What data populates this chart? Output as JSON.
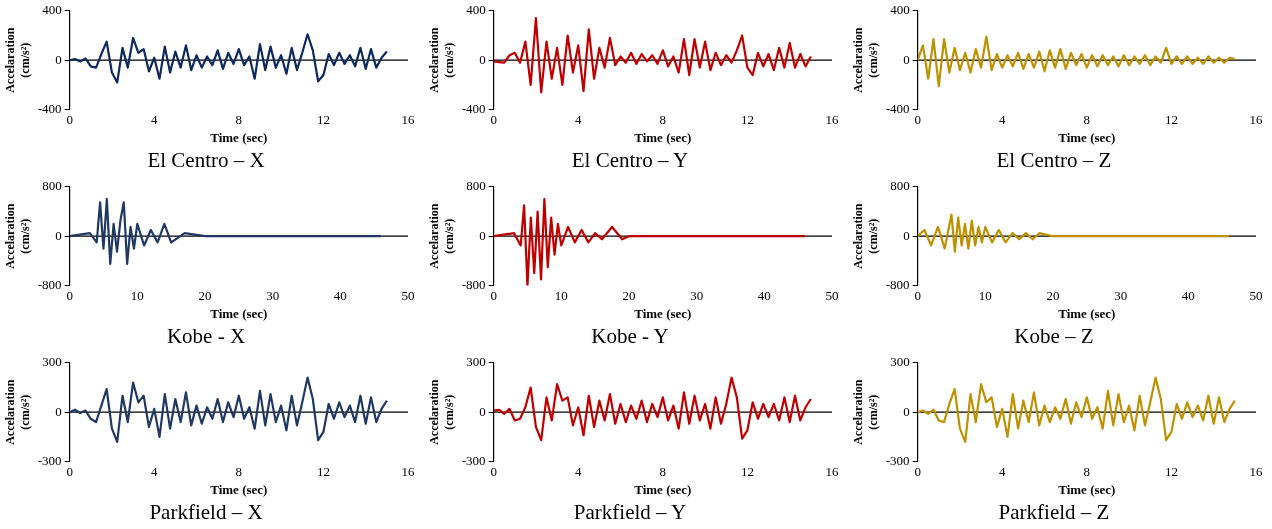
{
  "chart_data": [
    {
      "type": "line",
      "ref_lines": [
        {
          "axis": "y",
          "value": 0
        }
      ],
      "title": "El Centro – X",
      "xlabel": "Time (sec)",
      "ylabel": "Accelaration (cm/s²)",
      "xlim": [
        0,
        16
      ],
      "xticks": [
        0,
        4,
        8,
        12,
        16
      ],
      "ylim": [
        -400,
        400
      ],
      "yticks": [
        -400,
        0,
        400
      ],
      "grid": false,
      "legend": false,
      "marker": "none",
      "line_style": "solid",
      "series": [
        {
          "color": "#0d2a5e",
          "x": [
            0,
            0.25,
            0.5,
            0.75,
            1,
            1.25,
            1.5,
            1.75,
            2,
            2.25,
            2.5,
            2.75,
            3,
            3.25,
            3.5,
            3.75,
            4,
            4.25,
            4.5,
            4.75,
            5,
            5.25,
            5.5,
            5.75,
            6,
            6.25,
            6.5,
            6.75,
            7,
            7.25,
            7.5,
            7.75,
            8,
            8.25,
            8.5,
            8.75,
            9,
            9.25,
            9.5,
            9.75,
            10,
            10.25,
            10.5,
            10.75,
            11,
            11.25,
            11.5,
            11.75,
            12,
            12.25,
            12.5,
            12.75,
            13,
            13.25,
            13.5,
            13.75,
            14,
            14.25,
            14.5,
            14.75,
            15
          ],
          "values": [
            0,
            10,
            -10,
            15,
            -50,
            -60,
            50,
            150,
            -100,
            -180,
            100,
            -60,
            180,
            60,
            90,
            -90,
            20,
            -150,
            110,
            -100,
            70,
            -60,
            120,
            -80,
            40,
            -60,
            30,
            -40,
            80,
            -70,
            60,
            -30,
            90,
            -40,
            30,
            -150,
            130,
            -80,
            110,
            -60,
            40,
            -110,
            100,
            -80,
            60,
            210,
            80,
            -170,
            -120,
            50,
            -40,
            60,
            -30,
            40,
            -50,
            100,
            -70,
            90,
            -60,
            20,
            70
          ]
        }
      ]
    },
    {
      "type": "line",
      "ref_lines": [
        {
          "axis": "y",
          "value": 0
        }
      ],
      "title": "El Centro – Y",
      "xlabel": "Time (sec)",
      "ylabel": "Accelaration (cm/s²)",
      "xlim": [
        0,
        16
      ],
      "xticks": [
        0,
        4,
        8,
        12,
        16
      ],
      "ylim": [
        -400,
        400
      ],
      "yticks": [
        -400,
        0,
        400
      ],
      "grid": false,
      "legend": false,
      "marker": "none",
      "line_style": "solid",
      "series": [
        {
          "color": "#c00000",
          "x": [
            0,
            0.25,
            0.5,
            0.75,
            1,
            1.25,
            1.5,
            1.75,
            2,
            2.25,
            2.5,
            2.75,
            3,
            3.25,
            3.5,
            3.75,
            4,
            4.25,
            4.5,
            4.75,
            5,
            5.25,
            5.5,
            5.75,
            6,
            6.25,
            6.5,
            6.75,
            7,
            7.25,
            7.5,
            7.75,
            8,
            8.25,
            8.5,
            8.75,
            9,
            9.25,
            9.5,
            9.75,
            10,
            10.25,
            10.5,
            10.75,
            11,
            11.25,
            11.5,
            11.75,
            12,
            12.25,
            12.5,
            12.75,
            13,
            13.25,
            13.5,
            13.75,
            14,
            14.25,
            14.5,
            14.75,
            15
          ],
          "values": [
            -10,
            -15,
            -20,
            40,
            60,
            -20,
            150,
            -200,
            340,
            -260,
            150,
            -150,
            100,
            -200,
            200,
            -100,
            120,
            -250,
            250,
            -150,
            100,
            -60,
            180,
            -40,
            30,
            -20,
            60,
            -30,
            50,
            -10,
            40,
            -30,
            80,
            -50,
            30,
            -100,
            170,
            -120,
            170,
            -60,
            150,
            -80,
            60,
            -40,
            40,
            -20,
            80,
            200,
            -60,
            -120,
            60,
            -50,
            50,
            -80,
            100,
            -60,
            140,
            -60,
            50,
            -50,
            30
          ]
        }
      ]
    },
    {
      "type": "line",
      "ref_lines": [
        {
          "axis": "y",
          "value": 0
        }
      ],
      "title": "El Centro – Z",
      "xlabel": "Time (sec)",
      "ylabel": "Accelaration (cm/s²)",
      "xlim": [
        0,
        16
      ],
      "xticks": [
        0,
        4,
        8,
        12,
        16
      ],
      "ylim": [
        -400,
        400
      ],
      "yticks": [
        -400,
        0,
        400
      ],
      "grid": false,
      "legend": false,
      "marker": "none",
      "line_style": "solid",
      "series": [
        {
          "color": "#bf9000",
          "x": [
            0,
            0.25,
            0.5,
            0.75,
            1,
            1.25,
            1.5,
            1.75,
            2,
            2.25,
            2.5,
            2.75,
            3,
            3.25,
            3.5,
            3.75,
            4,
            4.25,
            4.5,
            4.75,
            5,
            5.25,
            5.5,
            5.75,
            6,
            6.25,
            6.5,
            6.75,
            7,
            7.25,
            7.5,
            7.75,
            8,
            8.25,
            8.5,
            8.75,
            9,
            9.25,
            9.5,
            9.75,
            10,
            10.25,
            10.5,
            10.75,
            11,
            11.25,
            11.5,
            11.75,
            12,
            12.25,
            12.5,
            12.75,
            13,
            13.25,
            13.5,
            13.75,
            14,
            14.25,
            14.5,
            14.75,
            15
          ],
          "values": [
            0,
            120,
            -150,
            170,
            -210,
            170,
            -100,
            100,
            -80,
            60,
            -100,
            90,
            -60,
            190,
            -80,
            50,
            -60,
            40,
            -50,
            60,
            -70,
            50,
            -60,
            70,
            -90,
            80,
            -60,
            90,
            -70,
            60,
            -40,
            50,
            -60,
            40,
            -50,
            40,
            -40,
            30,
            -50,
            40,
            -40,
            30,
            -30,
            40,
            -40,
            30,
            -20,
            100,
            -30,
            30,
            -30,
            30,
            -30,
            20,
            -30,
            30,
            -20,
            20,
            -20,
            20,
            10
          ]
        }
      ]
    },
    {
      "type": "line",
      "ref_lines": [
        {
          "axis": "y",
          "value": 0
        }
      ],
      "title": "Kobe - X",
      "xlabel": "Time (sec)",
      "ylabel": "Accelaration (cm/s²)",
      "xlim": [
        0,
        50
      ],
      "xticks": [
        0,
        10,
        20,
        30,
        40,
        50
      ],
      "ylim": [
        -800,
        800
      ],
      "yticks": [
        -800,
        0,
        800
      ],
      "grid": false,
      "legend": false,
      "marker": "none",
      "line_style": "solid",
      "series": [
        {
          "color": "#203864",
          "x": [
            0,
            3,
            4,
            4.5,
            5,
            5.5,
            6,
            6.5,
            7,
            7.5,
            8,
            8.5,
            9,
            9.5,
            10,
            11,
            12,
            13,
            14,
            15,
            17,
            20,
            30,
            46
          ],
          "values": [
            0,
            50,
            -100,
            550,
            -200,
            600,
            -450,
            200,
            -250,
            250,
            550,
            -450,
            150,
            -200,
            200,
            -150,
            100,
            -100,
            200,
            -100,
            50,
            0,
            0,
            0
          ]
        }
      ]
    },
    {
      "type": "line",
      "ref_lines": [
        {
          "axis": "y",
          "value": 0
        }
      ],
      "title": "Kobe - Y",
      "xlabel": "Time (sec)",
      "ylabel": "Accelaration (cm/s²)",
      "xlim": [
        0,
        50
      ],
      "xticks": [
        0,
        10,
        20,
        30,
        40,
        50
      ],
      "ylim": [
        -800,
        800
      ],
      "yticks": [
        -800,
        0,
        800
      ],
      "grid": false,
      "legend": false,
      "marker": "none",
      "line_style": "solid",
      "series": [
        {
          "color": "#c00000",
          "x": [
            0,
            3,
            4,
            4.5,
            5,
            5.5,
            6,
            6.5,
            7,
            7.5,
            8,
            8.5,
            9,
            9.5,
            10,
            11,
            12,
            13,
            14,
            15,
            16,
            17.5,
            19,
            20,
            30,
            46
          ],
          "values": [
            0,
            50,
            -150,
            500,
            -800,
            300,
            -600,
            400,
            -700,
            600,
            -500,
            300,
            -300,
            200,
            -150,
            150,
            -100,
            100,
            -100,
            50,
            -50,
            150,
            -50,
            0,
            0,
            0
          ]
        }
      ]
    },
    {
      "type": "line",
      "ref_lines": [
        {
          "axis": "y",
          "value": 0
        }
      ],
      "title": "Kobe – Z",
      "xlabel": "Time (sec)",
      "ylabel": "Accelaration (cm/s²)",
      "xlim": [
        0,
        50
      ],
      "xticks": [
        0,
        10,
        20,
        30,
        40,
        50
      ],
      "ylim": [
        -800,
        800
      ],
      "yticks": [
        -800,
        0,
        800
      ],
      "grid": false,
      "legend": false,
      "marker": "none",
      "line_style": "solid",
      "series": [
        {
          "color": "#bf9000",
          "x": [
            0,
            1,
            2,
            3,
            4,
            5,
            5.5,
            6,
            6.5,
            7,
            7.5,
            8,
            8.5,
            9,
            9.5,
            10,
            11,
            12,
            13,
            14,
            15,
            16,
            17,
            18,
            20,
            30,
            46
          ],
          "values": [
            0,
            100,
            -150,
            150,
            -200,
            350,
            -250,
            300,
            -150,
            200,
            -200,
            250,
            -150,
            150,
            -100,
            150,
            -100,
            100,
            -100,
            50,
            -50,
            50,
            -50,
            50,
            0,
            0,
            0
          ]
        }
      ]
    },
    {
      "type": "line",
      "ref_lines": [
        {
          "axis": "y",
          "value": 0
        }
      ],
      "title": "Parkfield – X",
      "xlabel": "Time (sec)",
      "ylabel": "Accelaration (cm/s²)",
      "xlim": [
        0,
        16
      ],
      "xticks": [
        0,
        4,
        8,
        12,
        16
      ],
      "ylim": [
        -300,
        300
      ],
      "yticks": [
        -300,
        0,
        300
      ],
      "grid": false,
      "legend": false,
      "marker": "none",
      "line_style": "solid",
      "series": [
        {
          "color": "#203864",
          "x": [
            0,
            0.25,
            0.5,
            0.75,
            1,
            1.25,
            1.5,
            1.75,
            2,
            2.25,
            2.5,
            2.75,
            3,
            3.25,
            3.5,
            3.75,
            4,
            4.25,
            4.5,
            4.75,
            5,
            5.25,
            5.5,
            5.75,
            6,
            6.25,
            6.5,
            6.75,
            7,
            7.25,
            7.5,
            7.75,
            8,
            8.25,
            8.5,
            8.75,
            9,
            9.25,
            9.5,
            9.75,
            10,
            10.25,
            10.5,
            10.75,
            11,
            11.25,
            11.5,
            11.75,
            12,
            12.25,
            12.5,
            12.75,
            13,
            13.25,
            13.5,
            13.75,
            14,
            14.25,
            14.5,
            14.75,
            15
          ],
          "values": [
            0,
            15,
            -5,
            10,
            -40,
            -60,
            40,
            140,
            -100,
            -180,
            100,
            -60,
            180,
            60,
            100,
            -90,
            20,
            -150,
            110,
            -100,
            80,
            -60,
            120,
            -80,
            40,
            -70,
            30,
            -40,
            80,
            -60,
            60,
            -30,
            100,
            -40,
            30,
            -100,
            130,
            -80,
            110,
            -60,
            40,
            -110,
            100,
            -80,
            60,
            210,
            80,
            -170,
            -120,
            50,
            -40,
            60,
            -30,
            40,
            -60,
            100,
            -70,
            90,
            -60,
            20,
            70
          ]
        }
      ]
    },
    {
      "type": "line",
      "ref_lines": [
        {
          "axis": "y",
          "value": 0
        }
      ],
      "title": "Parkfield – Y",
      "xlabel": "Time (sec)",
      "ylabel": "Accelaration (cm/s²)",
      "xlim": [
        0,
        16
      ],
      "xticks": [
        0,
        4,
        8,
        12,
        16
      ],
      "ylim": [
        -300,
        300
      ],
      "yticks": [
        -300,
        0,
        300
      ],
      "grid": false,
      "legend": false,
      "marker": "none",
      "line_style": "solid",
      "series": [
        {
          "color": "#c00000",
          "x": [
            0,
            0.25,
            0.5,
            0.75,
            1,
            1.25,
            1.5,
            1.75,
            2,
            2.25,
            2.5,
            2.75,
            3,
            3.25,
            3.5,
            3.75,
            4,
            4.25,
            4.5,
            4.75,
            5,
            5.25,
            5.5,
            5.75,
            6,
            6.25,
            6.5,
            6.75,
            7,
            7.25,
            7.5,
            7.75,
            8,
            8.25,
            8.5,
            8.75,
            9,
            9.25,
            9.5,
            9.75,
            10,
            10.25,
            10.5,
            10.75,
            11,
            11.25,
            11.5,
            11.75,
            12,
            12.25,
            12.5,
            12.75,
            13,
            13.25,
            13.5,
            13.75,
            14,
            14.25,
            14.5,
            14.75,
            15
          ],
          "values": [
            10,
            15,
            -10,
            20,
            -50,
            -40,
            30,
            150,
            -90,
            -170,
            90,
            -50,
            170,
            70,
            90,
            -80,
            30,
            -140,
            100,
            -90,
            70,
            -50,
            110,
            -70,
            50,
            -60,
            40,
            -40,
            70,
            -60,
            50,
            -30,
            90,
            -50,
            40,
            -100,
            120,
            -70,
            100,
            -50,
            50,
            -100,
            90,
            -70,
            50,
            210,
            90,
            -160,
            -110,
            60,
            -40,
            50,
            -30,
            50,
            -50,
            90,
            -60,
            100,
            -50,
            30,
            80
          ]
        }
      ]
    },
    {
      "type": "line",
      "ref_lines": [
        {
          "axis": "y",
          "value": 0
        }
      ],
      "title": "Parkfield – Z",
      "xlabel": "Time (sec)",
      "ylabel": "Accelaration (cm/s²)",
      "xlim": [
        0,
        16
      ],
      "xticks": [
        0,
        4,
        8,
        12,
        16
      ],
      "ylim": [
        -300,
        300
      ],
      "yticks": [
        -300,
        0,
        300
      ],
      "grid": false,
      "legend": false,
      "marker": "none",
      "line_style": "solid",
      "series": [
        {
          "color": "#bf9000",
          "x": [
            0,
            0.25,
            0.5,
            0.75,
            1,
            1.25,
            1.5,
            1.75,
            2,
            2.25,
            2.5,
            2.75,
            3,
            3.25,
            3.5,
            3.75,
            4,
            4.25,
            4.5,
            4.75,
            5,
            5.25,
            5.5,
            5.75,
            6,
            6.25,
            6.5,
            6.75,
            7,
            7.25,
            7.5,
            7.75,
            8,
            8.25,
            8.5,
            8.75,
            9,
            9.25,
            9.5,
            9.75,
            10,
            10.25,
            10.5,
            10.75,
            11,
            11.25,
            11.5,
            11.75,
            12,
            12.25,
            12.5,
            12.75,
            13,
            13.25,
            13.5,
            13.75,
            14,
            14.25,
            14.5,
            14.75,
            15
          ],
          "values": [
            0,
            10,
            -10,
            15,
            -50,
            -60,
            50,
            140,
            -100,
            -180,
            110,
            -60,
            170,
            60,
            90,
            -90,
            20,
            -150,
            110,
            -100,
            70,
            -60,
            120,
            -80,
            40,
            -60,
            30,
            -40,
            80,
            -70,
            60,
            -30,
            90,
            -40,
            30,
            -100,
            130,
            -80,
            110,
            -60,
            40,
            -110,
            100,
            -80,
            60,
            210,
            80,
            -170,
            -120,
            50,
            -40,
            60,
            -30,
            40,
            -50,
            100,
            -70,
            90,
            -60,
            20,
            70
          ]
        }
      ]
    }
  ]
}
